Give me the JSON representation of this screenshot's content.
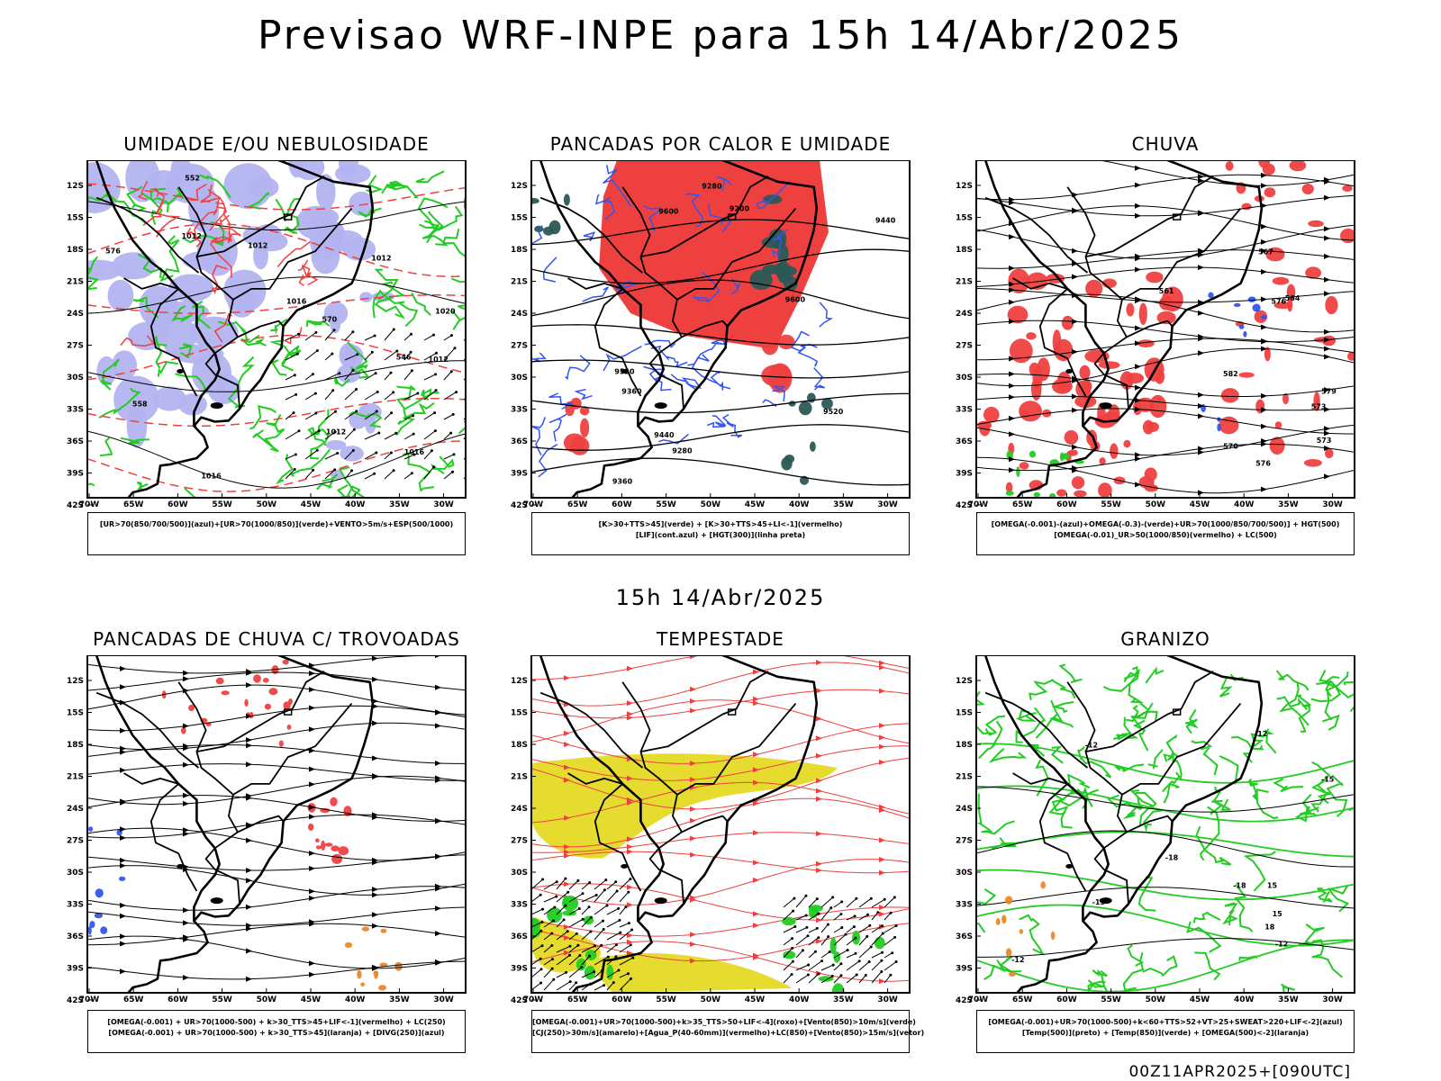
{
  "title": "Previsao WRF-INPE  para 15h 14/Abr/2025",
  "subtitle": "15h 14/Abr/2025",
  "footer": "00Z11APR2025+[090UTC]",
  "lat_ticks": [
    "12S",
    "15S",
    "18S",
    "21S",
    "24S",
    "27S",
    "30S",
    "33S",
    "36S",
    "39S",
    "42S"
  ],
  "lon_ticks": [
    "70W",
    "65W",
    "60W",
    "55W",
    "50W",
    "45W",
    "40W",
    "35W",
    "30W"
  ],
  "colors": {
    "red": "#ef4040",
    "green": "#22cc22",
    "blue": "#3355ee",
    "lavender": "#b3b3f0",
    "darkteal": "#2a5a55",
    "yellow": "#e6dc30",
    "orange": "#e88a2a",
    "black": "#000000"
  },
  "panels": [
    {
      "title": "UMIDADE E/OU NEBULOSIDADE",
      "legend": [
        "[UR>70(850/700/500)](azul)+[UR>70(1000/850)](verde)+VENTO>5m/s+ESP(500/1000)"
      ],
      "contour_labels": [
        "1012",
        "1012",
        "1012",
        "1012",
        "1012",
        "1016",
        "1016",
        "1016",
        "1020",
        "570",
        "576",
        "552",
        "558",
        "546"
      ]
    },
    {
      "title": "PANCADAS POR CALOR E UMIDADE",
      "legend": [
        "[K>30+TTS>45](verde)  +  [K>30+TTS>45+LI<-1](vermelho)",
        "[LIF](cont.azul)  +  [HGT(300)](linha preta)"
      ],
      "contour_labels": [
        "9600",
        "9520",
        "9440",
        "9360",
        "9280",
        "9200",
        "9600",
        "9520",
        "9440",
        "9360",
        "9280"
      ]
    },
    {
      "title": "CHUVA",
      "legend": [
        "[OMEGA(-0.001)-(azul)+OMEGA(-0.3)-(verde)+UR>70(1000/850/700/500)]  +  HGT(500)",
        "[OMEGA(-0.01)_UR>50(1000/850)(vermelho)  +  LC(500)"
      ],
      "contour_labels": [
        "582",
        "579",
        "576",
        "573",
        "570",
        "567",
        "564",
        "561",
        "573",
        "576"
      ]
    },
    {
      "title": "PANCADAS DE CHUVA C/ TROVOADAS",
      "legend": [
        "[OMEGA(-0.001)  +  UR>70(1000-500)  +  k>30_TTS>45+LIF<-1](vermelho)  +  LC(250)",
        "[OMEGA(-0.001)  +  UR>70(1000-500)  +  k>30_TTS>45](laranja)  +  [DIVG(250)](azul)"
      ],
      "contour_labels": []
    },
    {
      "title": "TEMPESTADE",
      "legend": [
        "[OMEGA(-0.001)+UR>70(1000-500)+k>35_TTS>50+LIF<-4](roxo)+[Vento(850)>10m/s](verde)",
        "[CJ(250)>30m/s](amarelo)+[Agua_P(40-60mm)](vermelho)+LC(850)+[Vento(850)>15m/s](vetor)"
      ],
      "contour_labels": []
    },
    {
      "title": "GRANIZO",
      "legend": [
        "[OMEGA(-0.001)+UR>70(1000-500)+k<60+TTS>52+VT>25+SWEAT>220+LIF<-2](azul)",
        "[Temp(500)](preto)  +  [Temp(850)](verde)  +  [OMEGA(500)<-2](laranja)"
      ],
      "contour_labels": [
        "-12",
        "-12",
        "-12",
        "-15",
        "-15",
        "-18",
        "-18",
        "12",
        "15",
        "15",
        "18"
      ]
    }
  ]
}
